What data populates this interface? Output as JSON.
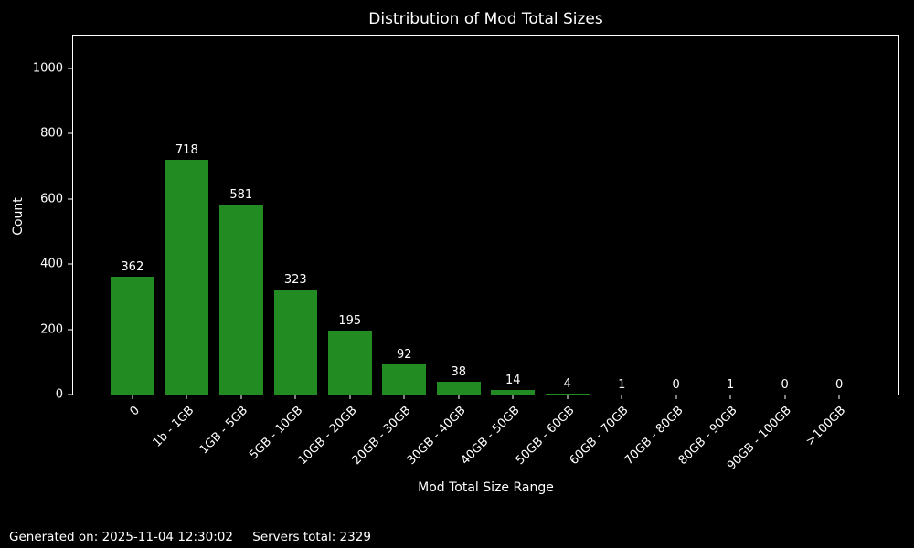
{
  "page": {
    "background": "#000000",
    "text_color": "#ffffff"
  },
  "chart_data": {
    "type": "bar",
    "title": "Distribution of Mod Total Sizes",
    "xlabel": "Mod Total Size Range",
    "ylabel": "Count",
    "categories": [
      "0",
      "1b - 1GB",
      "1GB - 5GB",
      "5GB - 10GB",
      "10GB - 20GB",
      "20GB - 30GB",
      "30GB - 40GB",
      "40GB - 50GB",
      "50GB - 60GB",
      "60GB - 70GB",
      "70GB - 80GB",
      "80GB - 90GB",
      "90GB - 100GB",
      ">100GB"
    ],
    "values": [
      362,
      718,
      581,
      323,
      195,
      92,
      38,
      14,
      4,
      1,
      0,
      1,
      0,
      0
    ],
    "yticks": [
      0,
      200,
      400,
      600,
      800,
      1000
    ],
    "ylim": [
      0,
      1100
    ],
    "bar_color": "#228B22",
    "bar_width_fraction": 0.8,
    "grid": false,
    "legend": null,
    "bar_value_labels": true,
    "x_tick_rotation_deg": 45
  },
  "footer": {
    "generated": "Generated on: 2025-11-04 12:30:02",
    "servers_total": "Servers total: 2329"
  }
}
